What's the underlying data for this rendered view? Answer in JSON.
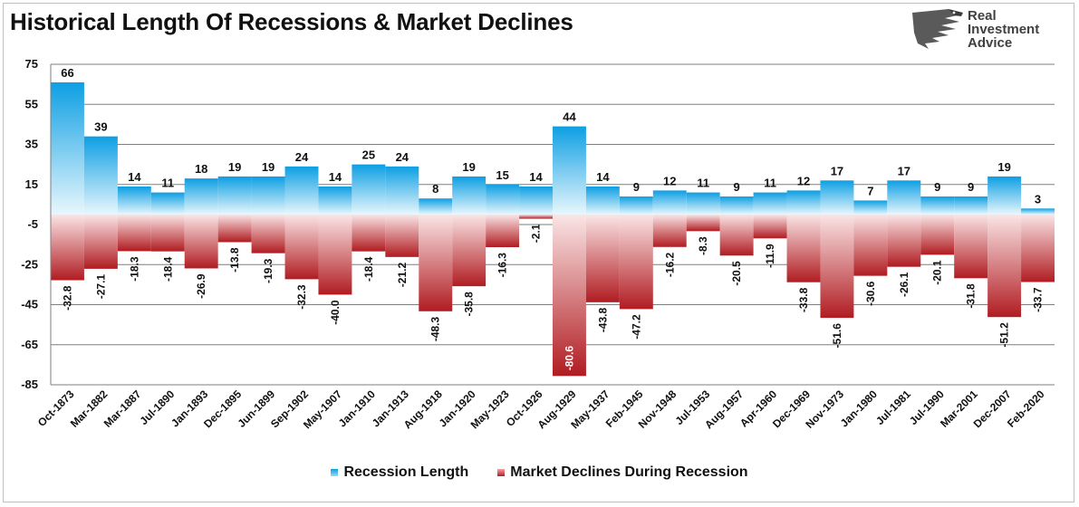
{
  "title": "Historical Length Of Recessions & Market Declines",
  "logo": {
    "line1": "Real",
    "line2": "Investment",
    "line3": "Advice"
  },
  "colors": {
    "recession_top": "#0d9fe3",
    "recession_bottom": "#e8f7fd",
    "decline_top": "#fbe5e6",
    "decline_bottom": "#b01c21",
    "gridline": "#7f7f7f"
  },
  "chart_data": {
    "type": "bar",
    "categories": [
      "Oct-1873",
      "Mar-1882",
      "Mar-1887",
      "Jul-1890",
      "Jan-1893",
      "Dec-1895",
      "Jun-1899",
      "Sep-1902",
      "May-1907",
      "Jan-1910",
      "Jan-1913",
      "Aug-1918",
      "Jan-1920",
      "May-1923",
      "Oct-1926",
      "Aug-1929",
      "May-1937",
      "Feb-1945",
      "Nov-1948",
      "Jul-1953",
      "Aug-1957",
      "Apr-1960",
      "Dec-1969",
      "Nov-1973",
      "Jan-1980",
      "Jul-1981",
      "Jul-1990",
      "Mar-2001",
      "Dec-2007",
      "Feb-2020"
    ],
    "series": [
      {
        "name": "Recession Length",
        "values": [
          66,
          39,
          14,
          11,
          18,
          19,
          19,
          24,
          14,
          25,
          24,
          8,
          19,
          15,
          14,
          44,
          14,
          9,
          12,
          11,
          9,
          11,
          12,
          17,
          7,
          17,
          9,
          9,
          19,
          3
        ]
      },
      {
        "name": "Market Declines During Recession",
        "values": [
          -32.8,
          -27.1,
          -18.3,
          -18.4,
          -26.9,
          -13.8,
          -19.3,
          -32.3,
          -40.0,
          -18.4,
          -21.2,
          -48.3,
          -35.8,
          -16.3,
          -2.1,
          -80.6,
          -43.8,
          -47.2,
          -16.2,
          -8.3,
          -20.5,
          -11.9,
          -33.8,
          -51.6,
          -30.6,
          -26.1,
          -20.1,
          -31.8,
          -51.2,
          -33.7
        ]
      }
    ],
    "value_labels": {
      "recession": [
        "66",
        "39",
        "14",
        "11",
        "18",
        "19",
        "19",
        "24",
        "14",
        "25",
        "24",
        "8",
        "19",
        "15",
        "14",
        "44",
        "14",
        "9",
        "12",
        "11",
        "9",
        "11",
        "12",
        "17",
        "7",
        "17",
        "9",
        "9",
        "19",
        "3"
      ],
      "decline": [
        "-32.8",
        "-27.1",
        "-18.3",
        "-18.4",
        "-26.9",
        "-13.8",
        "-19.3",
        "-32.3",
        "-40.0",
        "-18.4",
        "-21.2",
        "-48.3",
        "-35.8",
        "-16.3",
        "-2.1",
        "-80.6",
        "-43.8",
        "-47.2",
        "-16.2",
        "-8.3",
        "-20.5",
        "-11.9",
        "-33.8",
        "-51.6",
        "-30.6",
        "-26.1",
        "-20.1",
        "-31.8",
        "-51.2",
        "-33.7"
      ]
    },
    "ylim": [
      -85,
      75
    ],
    "yticks": [
      75,
      55,
      35,
      15,
      -5,
      -25,
      -45,
      -65,
      -85
    ],
    "grid": true,
    "legend_position": "bottom"
  }
}
